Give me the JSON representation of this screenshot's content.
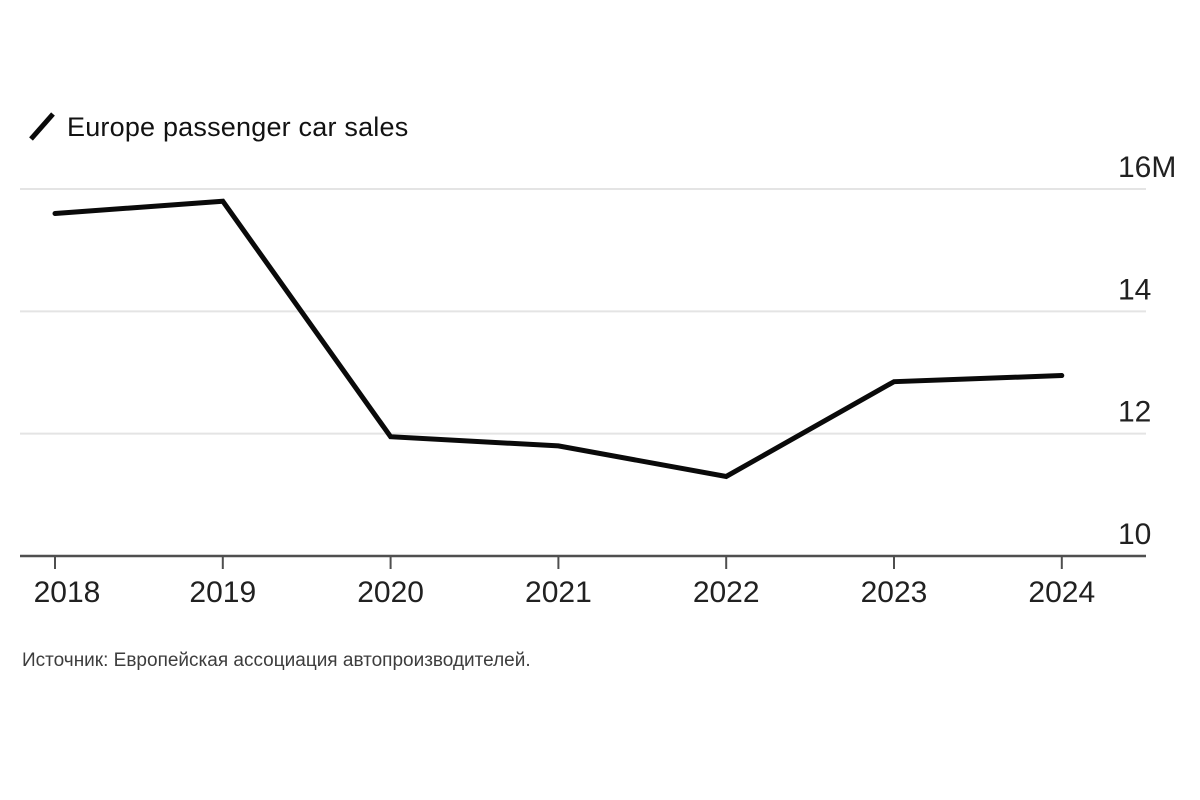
{
  "legend": {
    "marker_icon": "diagonal-line-series-marker",
    "label": "Europe passenger car sales"
  },
  "source_note": "Источник: Европейская ассоциация автопроизводителей.",
  "colors": {
    "background": "#ffffff",
    "line": "#0a0a0a",
    "gridline": "#e4e4e4",
    "axis": "#4f4f4f",
    "label_text": "#212121",
    "source_text": "#3d3d3d"
  },
  "chart_data": {
    "type": "line",
    "title": "Europe passenger car sales",
    "x": [
      2018,
      2019,
      2020,
      2021,
      2022,
      2023,
      2024
    ],
    "x_tick_labels": [
      "2018",
      "2019",
      "2020",
      "2021",
      "2022",
      "2023",
      "2024"
    ],
    "series": [
      {
        "name": "Europe passenger car sales",
        "values": [
          15.6,
          15.8,
          11.95,
          11.8,
          11.3,
          12.85,
          12.95
        ]
      }
    ],
    "unit": "millions of cars",
    "y_ticks": [
      10,
      12,
      14,
      16
    ],
    "y_tick_labels": [
      "10",
      "12",
      "14",
      "16M"
    ],
    "ylim": [
      10,
      16.2
    ],
    "grid": "horizontal",
    "legend_position": "top-left",
    "y_axis_side": "right"
  }
}
